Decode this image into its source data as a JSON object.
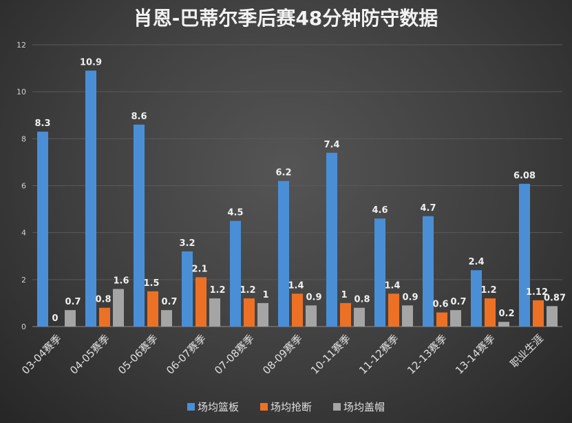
{
  "chart_data": {
    "type": "bar",
    "title": "肖恩-巴蒂尔季后赛48分钟防守数据",
    "xlabel": "",
    "ylabel": "",
    "ylim": [
      0,
      12
    ],
    "yticks": [
      0,
      2,
      4,
      6,
      8,
      10,
      12
    ],
    "grid": true,
    "legend_position": "bottom",
    "categories": [
      "03-04赛季",
      "04-05赛季",
      "05-06赛季",
      "06-07赛季",
      "07-08赛季",
      "08-09赛季",
      "10-11赛季",
      "11-12赛季",
      "12-13赛季",
      "13-14赛季",
      "职业生涯"
    ],
    "series": [
      {
        "name": "场均篮板",
        "color": "#4a8fd6",
        "values": [
          8.3,
          10.9,
          8.6,
          3.2,
          4.5,
          6.2,
          7.4,
          4.6,
          4.7,
          2.4,
          6.08
        ]
      },
      {
        "name": "场均抢断",
        "color": "#ed7125",
        "values": [
          0,
          0.8,
          1.5,
          2.1,
          1.2,
          1.4,
          1,
          1.4,
          0.6,
          1.2,
          1.12
        ]
      },
      {
        "name": "场均盖帽",
        "color": "#a5a5a5",
        "values": [
          0.7,
          1.6,
          0.7,
          1.2,
          1,
          0.9,
          0.8,
          0.9,
          0.7,
          0.2,
          0.87
        ]
      }
    ]
  }
}
